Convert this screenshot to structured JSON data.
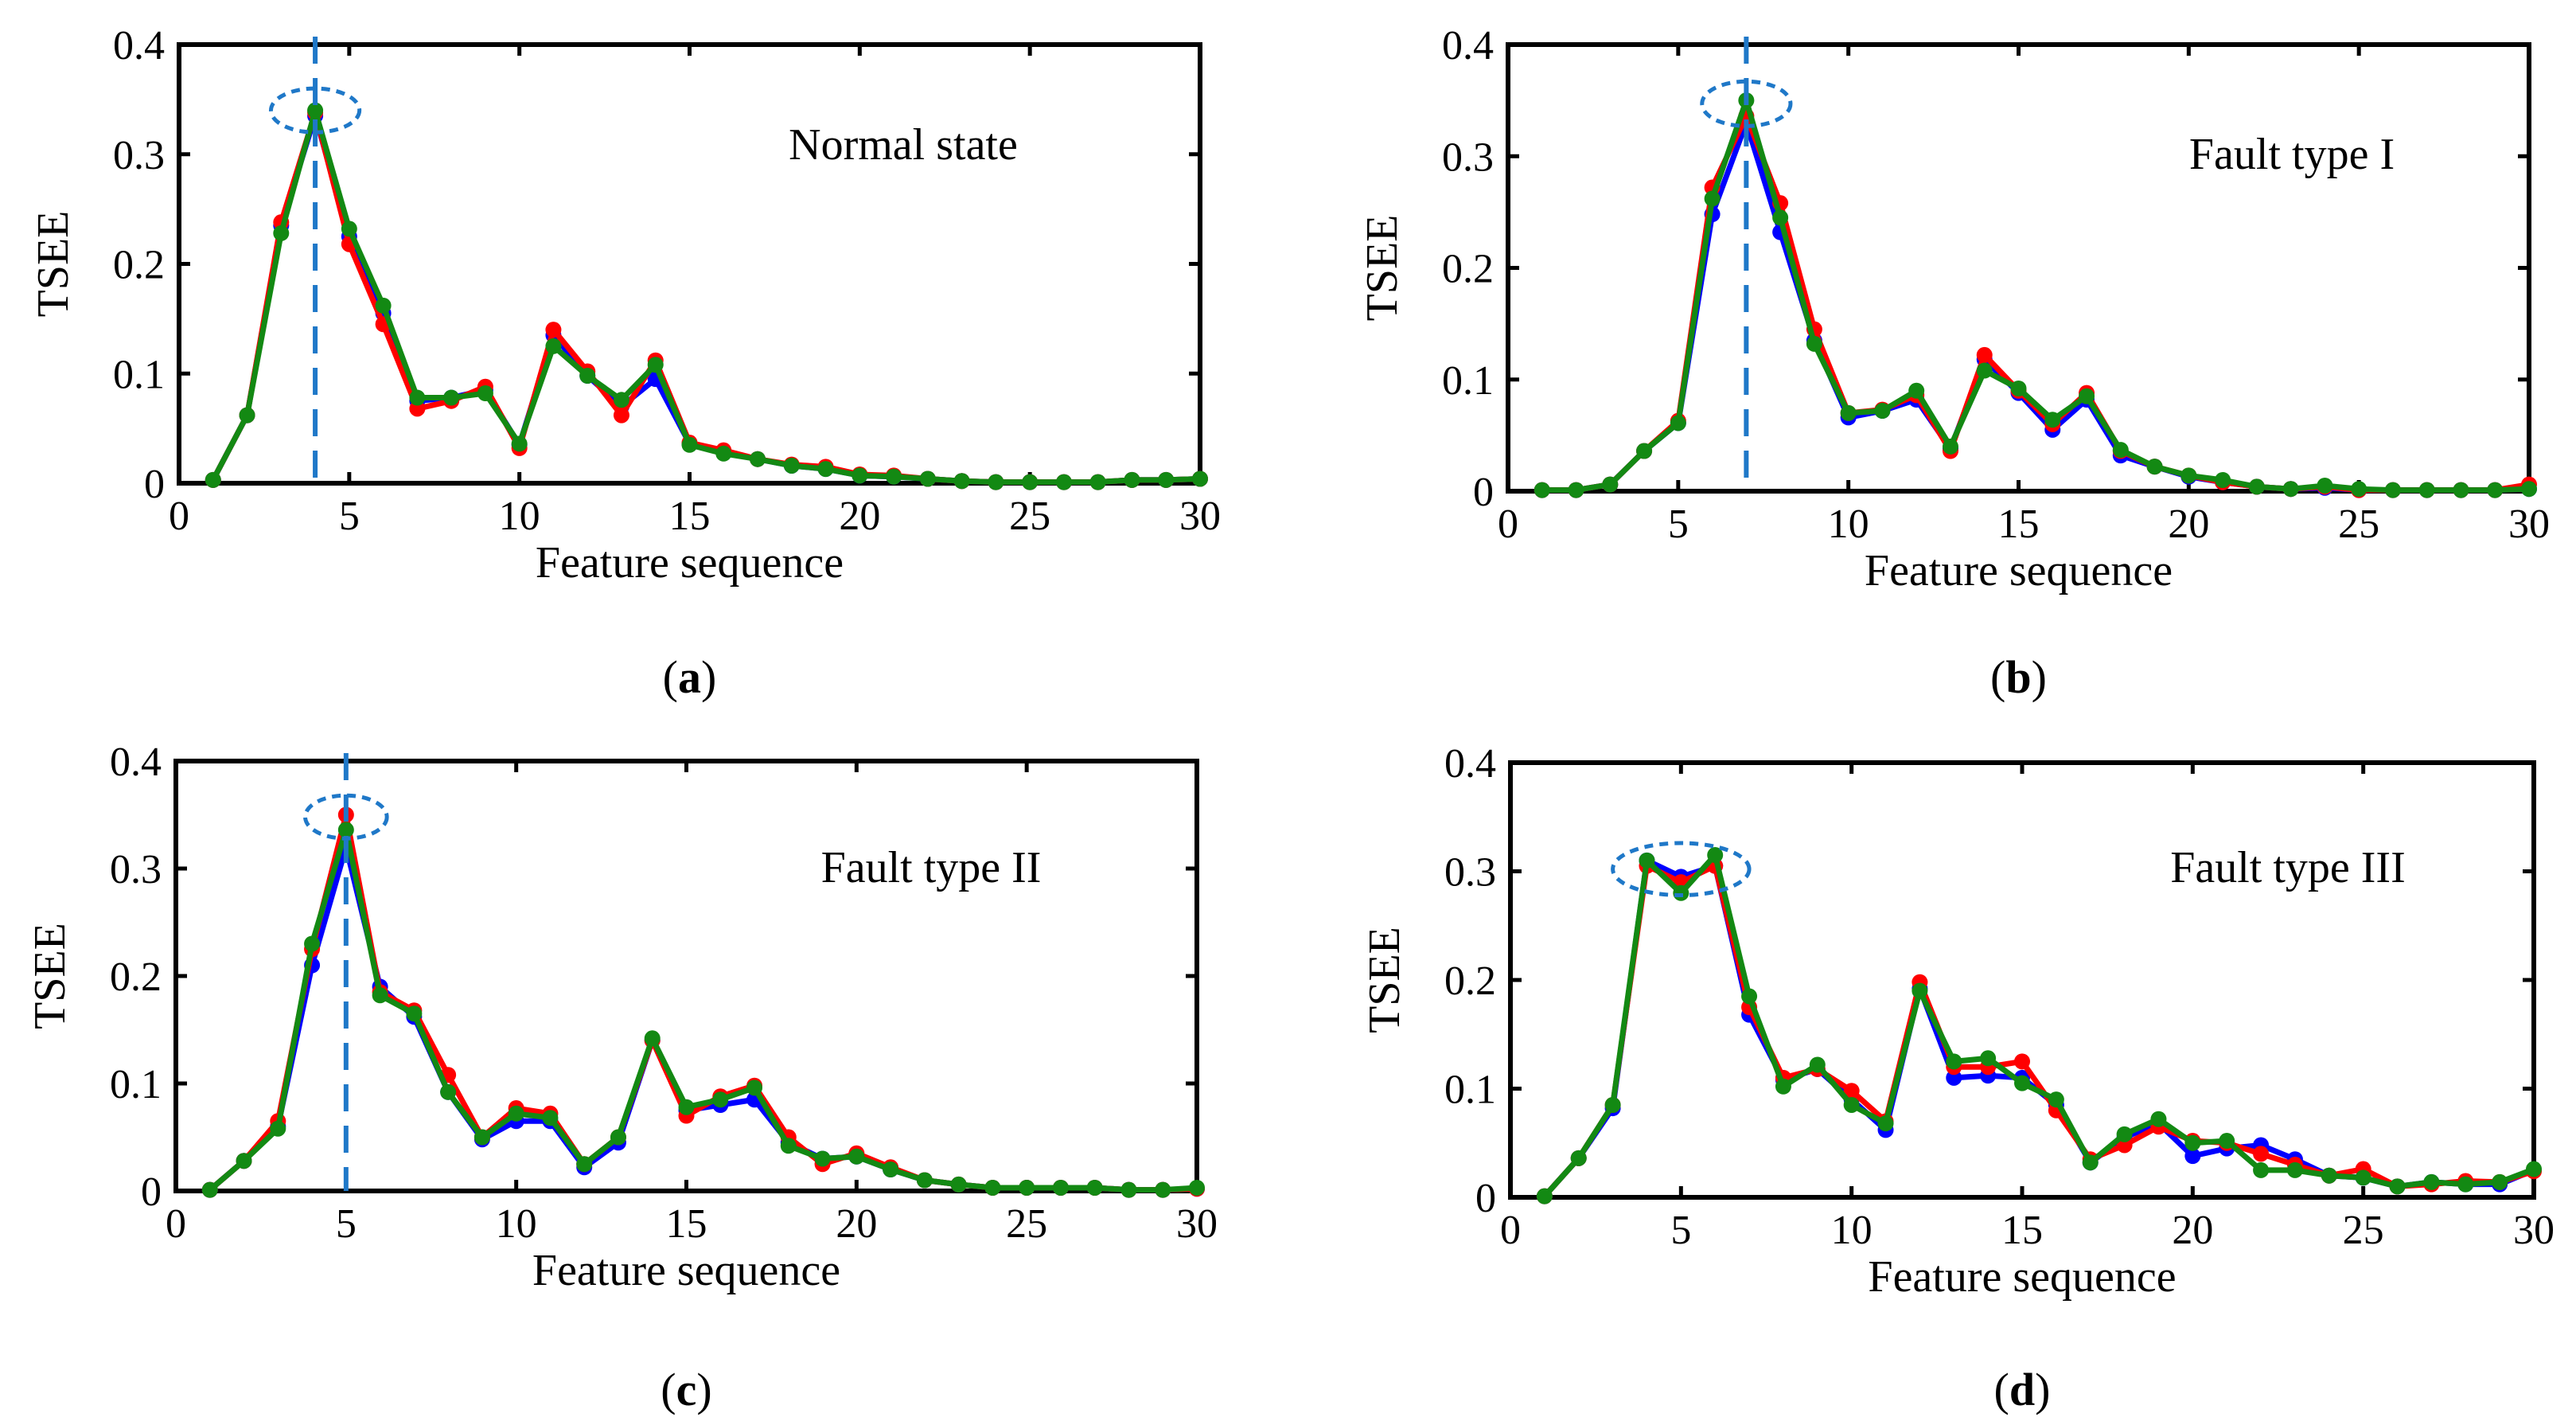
{
  "colors": {
    "series_blue": "#0000ff",
    "series_red": "#ff0000",
    "series_green": "#138913",
    "highlight": "#1f78c8",
    "axis": "#000000"
  },
  "chart_data": [
    {
      "type": "line",
      "panel": "a",
      "caption_letter": "a",
      "annotation": "Normal state",
      "xlabel": "Feature sequence",
      "ylabel": "TSEE",
      "xlim": [
        0,
        30
      ],
      "ylim": [
        0,
        0.4
      ],
      "xticks": [
        "0",
        "5",
        "10",
        "15",
        "20",
        "25",
        "30"
      ],
      "yticks": [
        "0",
        "0.1",
        "0.2",
        "0.3",
        "0.4"
      ],
      "peak_marker_x": 4,
      "highlight_center": [
        4,
        0.34
      ],
      "highlight_radii": [
        1.3,
        0.02
      ],
      "x": [
        1,
        2,
        3,
        4,
        5,
        6,
        7,
        8,
        9,
        10,
        11,
        12,
        13,
        14,
        15,
        16,
        17,
        18,
        19,
        20,
        21,
        22,
        23,
        24,
        25,
        26,
        27,
        28,
        29,
        30
      ],
      "series": [
        {
          "name": "blue",
          "values": [
            0.003,
            0.062,
            0.235,
            0.335,
            0.225,
            0.155,
            0.075,
            0.078,
            0.085,
            0.035,
            0.135,
            0.098,
            0.07,
            0.095,
            0.036,
            0.028,
            0.022,
            0.016,
            0.013,
            0.007,
            0.006,
            0.004,
            0.002,
            0.001,
            0.001,
            0.001,
            0.001,
            0.003,
            0.003,
            0.004
          ]
        },
        {
          "name": "red",
          "values": [
            0.003,
            0.062,
            0.238,
            0.338,
            0.218,
            0.145,
            0.068,
            0.075,
            0.088,
            0.032,
            0.14,
            0.102,
            0.062,
            0.112,
            0.037,
            0.03,
            0.022,
            0.017,
            0.015,
            0.008,
            0.007,
            0.004,
            0.002,
            0.001,
            0.001,
            0.001,
            0.001,
            0.003,
            0.003,
            0.004
          ]
        },
        {
          "name": "green",
          "values": [
            0.003,
            0.062,
            0.228,
            0.34,
            0.232,
            0.162,
            0.078,
            0.078,
            0.082,
            0.036,
            0.125,
            0.098,
            0.076,
            0.108,
            0.035,
            0.027,
            0.022,
            0.016,
            0.013,
            0.007,
            0.006,
            0.004,
            0.002,
            0.001,
            0.001,
            0.001,
            0.001,
            0.003,
            0.003,
            0.004
          ]
        }
      ]
    },
    {
      "type": "line",
      "panel": "b",
      "caption_letter": "b",
      "annotation": "Fault type I",
      "xlabel": "Feature sequence",
      "ylabel": "TSEE",
      "xlim": [
        0,
        30
      ],
      "ylim": [
        0,
        0.4
      ],
      "xticks": [
        "0",
        "5",
        "10",
        "15",
        "20",
        "25",
        "30"
      ],
      "yticks": [
        "0",
        "0.1",
        "0.2",
        "0.3",
        "0.4"
      ],
      "peak_marker_x": 7,
      "highlight_center": [
        7,
        0.347
      ],
      "highlight_radii": [
        1.3,
        0.02
      ],
      "x": [
        1,
        2,
        3,
        4,
        5,
        6,
        7,
        8,
        9,
        10,
        11,
        12,
        13,
        14,
        15,
        16,
        17,
        18,
        19,
        20,
        21,
        22,
        23,
        24,
        25,
        26,
        27,
        28,
        29,
        30
      ],
      "series": [
        {
          "name": "blue",
          "values": [
            0.001,
            0.001,
            0.006,
            0.036,
            0.061,
            0.248,
            0.33,
            0.232,
            0.135,
            0.066,
            0.072,
            0.082,
            0.038,
            0.118,
            0.088,
            0.055,
            0.082,
            0.032,
            0.022,
            0.013,
            0.008,
            0.004,
            0.002,
            0.003,
            0.001,
            0.001,
            0.001,
            0.001,
            0.001,
            0.002
          ]
        },
        {
          "name": "red",
          "values": [
            0.001,
            0.001,
            0.006,
            0.036,
            0.063,
            0.272,
            0.336,
            0.258,
            0.145,
            0.07,
            0.073,
            0.086,
            0.036,
            0.122,
            0.09,
            0.06,
            0.088,
            0.036,
            0.022,
            0.014,
            0.008,
            0.004,
            0.002,
            0.004,
            0.001,
            0.001,
            0.001,
            0.001,
            0.001,
            0.006
          ]
        },
        {
          "name": "green",
          "values": [
            0.001,
            0.001,
            0.006,
            0.036,
            0.061,
            0.262,
            0.35,
            0.245,
            0.132,
            0.07,
            0.072,
            0.09,
            0.04,
            0.108,
            0.092,
            0.064,
            0.085,
            0.037,
            0.022,
            0.014,
            0.01,
            0.004,
            0.002,
            0.005,
            0.002,
            0.001,
            0.001,
            0.001,
            0.001,
            0.002
          ]
        }
      ]
    },
    {
      "type": "line",
      "panel": "c",
      "caption_letter": "c",
      "annotation": "Fault type II",
      "xlabel": "Feature sequence",
      "ylabel": "TSEE",
      "xlim": [
        0,
        30
      ],
      "ylim": [
        0,
        0.4
      ],
      "xticks": [
        "0",
        "5",
        "10",
        "15",
        "20",
        "25",
        "30"
      ],
      "yticks": [
        "0",
        "0.1",
        "0.2",
        "0.3",
        "0.4"
      ],
      "peak_marker_x": 5,
      "highlight_center": [
        5,
        0.348
      ],
      "highlight_radii": [
        1.2,
        0.02
      ],
      "x": [
        1,
        2,
        3,
        4,
        5,
        6,
        7,
        8,
        9,
        10,
        11,
        12,
        13,
        14,
        15,
        16,
        17,
        18,
        19,
        20,
        21,
        22,
        23,
        24,
        25,
        26,
        27,
        28,
        29,
        30
      ],
      "series": [
        {
          "name": "blue",
          "values": [
            0.001,
            0.028,
            0.06,
            0.21,
            0.32,
            0.19,
            0.162,
            0.092,
            0.048,
            0.065,
            0.065,
            0.022,
            0.045,
            0.14,
            0.075,
            0.08,
            0.085,
            0.045,
            0.03,
            0.032,
            0.02,
            0.01,
            0.006,
            0.003,
            0.003,
            0.003,
            0.003,
            0.001,
            0.001,
            0.002
          ]
        },
        {
          "name": "red",
          "values": [
            0.001,
            0.028,
            0.065,
            0.225,
            0.35,
            0.185,
            0.168,
            0.108,
            0.05,
            0.077,
            0.072,
            0.025,
            0.05,
            0.14,
            0.07,
            0.088,
            0.098,
            0.05,
            0.025,
            0.035,
            0.022,
            0.01,
            0.006,
            0.003,
            0.003,
            0.003,
            0.003,
            0.001,
            0.001,
            0.002
          ]
        },
        {
          "name": "green",
          "values": [
            0.001,
            0.028,
            0.058,
            0.23,
            0.336,
            0.182,
            0.165,
            0.092,
            0.05,
            0.072,
            0.068,
            0.025,
            0.05,
            0.142,
            0.078,
            0.085,
            0.096,
            0.042,
            0.03,
            0.032,
            0.02,
            0.01,
            0.006,
            0.003,
            0.003,
            0.003,
            0.003,
            0.001,
            0.001,
            0.003
          ]
        }
      ]
    },
    {
      "type": "line",
      "panel": "d",
      "caption_letter": "d",
      "annotation": "Fault type III",
      "xlabel": "Feature sequence",
      "ylabel": "TSEE",
      "xlim": [
        0,
        30
      ],
      "ylim": [
        0,
        0.4
      ],
      "xticks": [
        "0",
        "5",
        "10",
        "15",
        "20",
        "25",
        "30"
      ],
      "yticks": [
        "0",
        "0.1",
        "0.2",
        "0.3",
        "0.4"
      ],
      "peak_marker_x": null,
      "highlight_center": [
        5,
        0.302
      ],
      "highlight_radii": [
        2.0,
        0.024
      ],
      "x": [
        1,
        2,
        3,
        4,
        5,
        6,
        7,
        8,
        9,
        10,
        11,
        12,
        13,
        14,
        15,
        16,
        17,
        18,
        19,
        20,
        21,
        22,
        23,
        24,
        25,
        26,
        27,
        28,
        29,
        30
      ],
      "series": [
        {
          "name": "blue",
          "values": [
            0.001,
            0.036,
            0.082,
            0.31,
            0.295,
            0.305,
            0.168,
            0.108,
            0.118,
            0.09,
            0.062,
            0.192,
            0.11,
            0.112,
            0.11,
            0.085,
            0.032,
            0.055,
            0.068,
            0.038,
            0.045,
            0.048,
            0.035,
            0.02,
            0.018,
            0.01,
            0.014,
            0.012,
            0.012,
            0.025
          ]
        },
        {
          "name": "red",
          "values": [
            0.001,
            0.036,
            0.085,
            0.305,
            0.29,
            0.305,
            0.175,
            0.11,
            0.118,
            0.098,
            0.07,
            0.198,
            0.12,
            0.12,
            0.125,
            0.08,
            0.035,
            0.048,
            0.065,
            0.052,
            0.05,
            0.04,
            0.03,
            0.02,
            0.026,
            0.01,
            0.012,
            0.015,
            0.014,
            0.024
          ]
        },
        {
          "name": "green",
          "values": [
            0.001,
            0.036,
            0.085,
            0.31,
            0.28,
            0.315,
            0.185,
            0.102,
            0.122,
            0.085,
            0.068,
            0.19,
            0.125,
            0.128,
            0.105,
            0.09,
            0.032,
            0.058,
            0.072,
            0.05,
            0.052,
            0.025,
            0.025,
            0.02,
            0.018,
            0.01,
            0.014,
            0.012,
            0.014,
            0.026
          ]
        }
      ]
    }
  ]
}
